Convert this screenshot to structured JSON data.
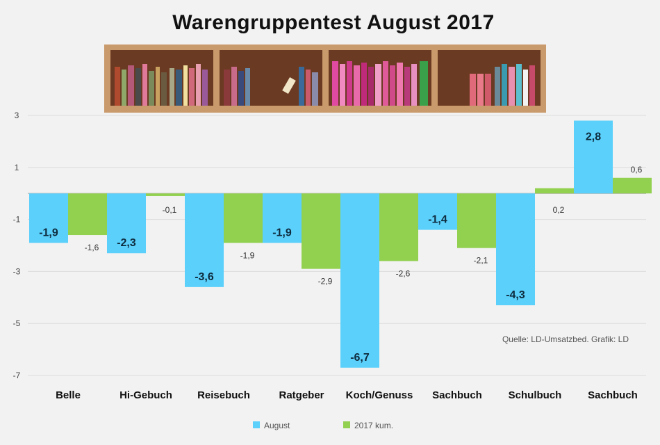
{
  "chart_data": {
    "type": "bar",
    "title": "Warengruppentest August 2017",
    "categories": [
      "Belle",
      "Hi-Gebuch",
      "Reisebuch",
      "Ratgeber",
      "Koch/Genuss",
      "Sachbuch",
      "Schulbuch",
      "Sachbuch"
    ],
    "series": [
      {
        "name": "August",
        "color": "#5bd0fb",
        "values": [
          -1.9,
          -2.3,
          -3.6,
          -1.9,
          -6.7,
          -1.4,
          -4.3,
          2.8
        ]
      },
      {
        "name": "2017 kum.",
        "color": "#92d050",
        "values": [
          -1.6,
          -0.1,
          -1.9,
          -2.9,
          -2.6,
          -2.1,
          0.2,
          0.6
        ]
      }
    ],
    "value_labels": {
      "August": [
        "-1,9",
        "-2,3",
        "-3,6",
        "-1,9",
        "-6,7",
        "-1,4",
        "-4,3",
        "2,8"
      ],
      "2017 kum.": [
        "-1,6",
        "-0,1",
        "-1,9",
        "-2,9",
        "-2,6",
        "-2,1",
        "0,2",
        "0,6"
      ]
    },
    "yticks": [
      "3",
      "1",
      "-1",
      "-3",
      "-5",
      "-7"
    ],
    "ylim": [
      -7,
      3
    ],
    "grid": true,
    "legend": "bottom",
    "source": "Quelle: LD-Umsatzbed. Grafik: LD"
  },
  "decoration": {
    "icon": "bookshelf-icon",
    "colors": {
      "frame": "#c99a6b",
      "wall": "#6b3a22",
      "background": "#f2f2f2",
      "grid": "#dcdcdc"
    }
  }
}
